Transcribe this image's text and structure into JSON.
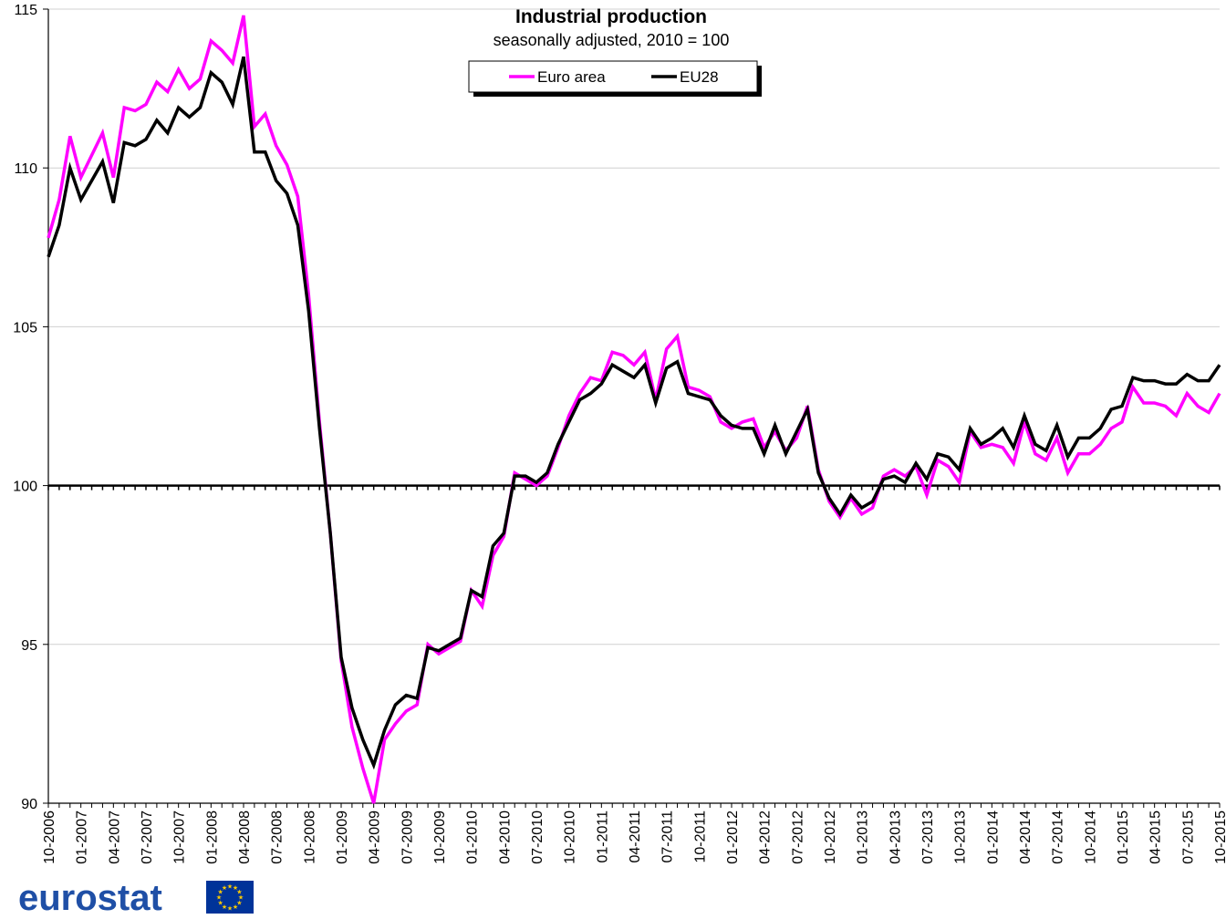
{
  "chart_data": {
    "type": "line",
    "title": "Industrial production",
    "subtitle": "seasonally adjusted, 2010 = 100",
    "ylim": [
      90,
      115
    ],
    "yticks": [
      90,
      95,
      100,
      105,
      110,
      115
    ],
    "reference_line": 100,
    "grid": true,
    "legend_position": "top-center",
    "x_tick_labels": [
      "10-2006",
      "01-2007",
      "04-2007",
      "07-2007",
      "10-2007",
      "01-2008",
      "04-2008",
      "07-2008",
      "10-2008",
      "01-2009",
      "04-2009",
      "07-2009",
      "10-2009",
      "01-2010",
      "04-2010",
      "07-2010",
      "10-2010",
      "01-2011",
      "04-2011",
      "07-2011",
      "10-2011",
      "01-2012",
      "04-2012",
      "07-2012",
      "10-2012",
      "01-2013",
      "04-2013",
      "07-2013",
      "10-2013",
      "01-2014",
      "04-2014",
      "07-2014",
      "10-2014",
      "01-2015",
      "04-2015",
      "07-2015",
      "10-2015"
    ],
    "x_start": "10-2006",
    "x_end": "10-2015",
    "n_months": 109,
    "series": [
      {
        "name": "Euro area",
        "color": "#ff00ff",
        "values": [
          107.8,
          109.0,
          111.0,
          109.7,
          110.4,
          111.1,
          109.7,
          111.9,
          111.8,
          112.0,
          112.7,
          112.4,
          113.1,
          112.5,
          112.8,
          114.0,
          113.7,
          113.3,
          114.8,
          111.3,
          111.7,
          110.7,
          110.1,
          109.1,
          106.0,
          102.0,
          98.5,
          94.5,
          92.4,
          91.1,
          90.0,
          92.0,
          92.5,
          92.9,
          93.1,
          95.0,
          94.7,
          94.9,
          95.1,
          96.7,
          96.2,
          97.8,
          98.4,
          100.4,
          100.2,
          100.0,
          100.3,
          101.2,
          102.2,
          102.9,
          103.4,
          103.3,
          104.2,
          104.1,
          103.8,
          104.2,
          102.7,
          104.3,
          104.7,
          103.1,
          103.0,
          102.8,
          102.0,
          101.8,
          102.0,
          102.1,
          101.2,
          101.7,
          101.1,
          101.5,
          102.5,
          100.5,
          99.5,
          99.0,
          99.6,
          99.1,
          99.3,
          100.3,
          100.5,
          100.3,
          100.6,
          99.7,
          100.8,
          100.6,
          100.1,
          101.7,
          101.2,
          101.3,
          101.2,
          100.7,
          102.0,
          101.0,
          100.8,
          101.5,
          100.4,
          101.0,
          101.0,
          101.3,
          101.8,
          102.0,
          103.1,
          102.6,
          102.6,
          102.5,
          102.2,
          102.9,
          102.5,
          102.3,
          102.9
        ]
      },
      {
        "name": "EU28",
        "color": "#000000",
        "values": [
          107.2,
          108.2,
          110.0,
          109.0,
          109.6,
          110.2,
          108.9,
          110.8,
          110.7,
          110.9,
          111.5,
          111.1,
          111.9,
          111.6,
          111.9,
          113.0,
          112.7,
          112.0,
          113.5,
          110.5,
          110.5,
          109.6,
          109.2,
          108.2,
          105.5,
          101.8,
          98.5,
          94.6,
          93.0,
          92.0,
          91.2,
          92.3,
          93.1,
          93.4,
          93.3,
          94.9,
          94.8,
          95.0,
          95.2,
          96.7,
          96.5,
          98.1,
          98.5,
          100.3,
          100.3,
          100.1,
          100.4,
          101.3,
          102.0,
          102.7,
          102.9,
          103.2,
          103.8,
          103.6,
          103.4,
          103.8,
          102.6,
          103.7,
          103.9,
          102.9,
          102.8,
          102.7,
          102.2,
          101.9,
          101.8,
          101.8,
          101.0,
          101.9,
          101.0,
          101.7,
          102.4,
          100.4,
          99.6,
          99.1,
          99.7,
          99.3,
          99.5,
          100.2,
          100.3,
          100.1,
          100.7,
          100.2,
          101.0,
          100.9,
          100.5,
          101.8,
          101.3,
          101.5,
          101.8,
          101.2,
          102.2,
          101.3,
          101.1,
          101.9,
          100.9,
          101.5,
          101.5,
          101.8,
          102.4,
          102.5,
          103.4,
          103.3,
          103.3,
          103.2,
          103.2,
          103.5,
          103.3,
          103.3,
          103.8
        ]
      }
    ]
  },
  "logo": {
    "text": "eurostat",
    "flag_color": "#003399",
    "star_color": "#ffcc00"
  }
}
